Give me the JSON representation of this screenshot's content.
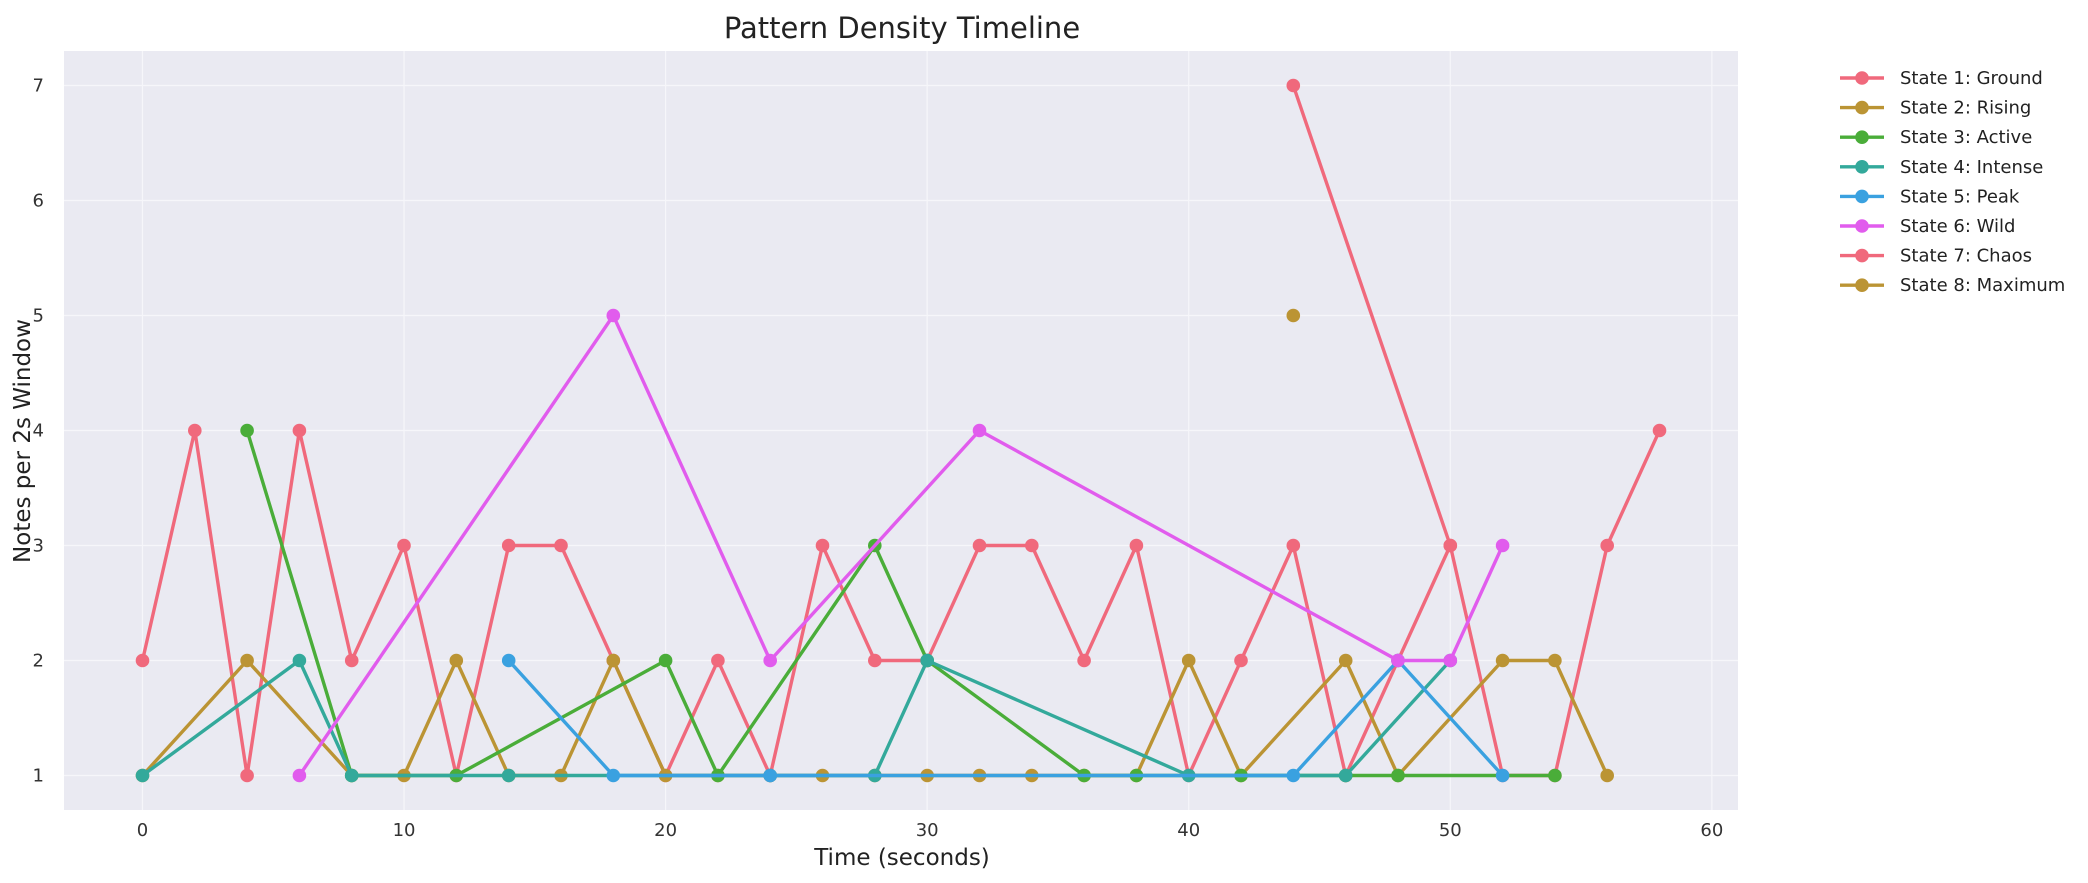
{
  "chart_data": {
    "type": "line",
    "title": "Pattern Density Timeline",
    "xlabel": "Time (seconds)",
    "ylabel": "Notes per 2s Window",
    "xlim": [
      -3,
      61
    ],
    "ylim": [
      0.7,
      7.3
    ],
    "xticks": [
      0,
      10,
      20,
      30,
      40,
      50,
      60
    ],
    "yticks": [
      1,
      2,
      3,
      4,
      5,
      6,
      7
    ],
    "grid": true,
    "legend_position": "outside-right",
    "series": [
      {
        "name": "State 1: Ground",
        "color": "#f0697c",
        "points": [
          [
            0,
            2
          ],
          [
            2,
            4
          ],
          [
            4,
            1
          ],
          [
            6,
            4
          ],
          [
            8,
            2
          ],
          [
            10,
            3
          ],
          [
            12,
            1
          ],
          [
            14,
            3
          ],
          [
            16,
            3
          ],
          [
            18,
            2
          ],
          [
            20,
            1
          ],
          [
            22,
            2
          ],
          [
            24,
            1
          ],
          [
            26,
            3
          ],
          [
            28,
            2
          ],
          [
            30,
            2
          ],
          [
            32,
            3
          ],
          [
            34,
            3
          ],
          [
            36,
            2
          ],
          [
            38,
            3
          ],
          [
            40,
            1
          ],
          [
            42,
            2
          ],
          [
            44,
            3
          ],
          [
            46,
            1
          ],
          [
            48,
            2
          ],
          [
            50,
            3
          ],
          [
            52,
            1
          ],
          [
            54,
            1
          ],
          [
            56,
            3
          ],
          [
            58,
            4
          ]
        ]
      },
      {
        "name": "State 2: Rising",
        "color": "#bb9434",
        "points": [
          [
            0,
            1
          ],
          [
            4,
            2
          ],
          [
            8,
            1
          ],
          [
            10,
            1
          ],
          [
            12,
            2
          ],
          [
            14,
            1
          ],
          [
            16,
            1
          ],
          [
            18,
            2
          ],
          [
            20,
            1
          ],
          [
            22,
            1
          ],
          [
            24,
            1
          ],
          [
            26,
            1
          ],
          [
            28,
            1
          ],
          [
            30,
            1
          ],
          [
            32,
            1
          ],
          [
            34,
            1
          ],
          [
            36,
            1
          ],
          [
            38,
            1
          ],
          [
            40,
            2
          ],
          [
            42,
            1
          ],
          [
            46,
            2
          ],
          [
            48,
            1
          ],
          [
            52,
            2
          ],
          [
            54,
            2
          ],
          [
            56,
            1
          ]
        ]
      },
      {
        "name": "State 3: Active",
        "color": "#4aad39",
        "points": [
          [
            4,
            4
          ],
          [
            8,
            1
          ],
          [
            12,
            1
          ],
          [
            20,
            2
          ],
          [
            22,
            1
          ],
          [
            28,
            3
          ],
          [
            30,
            2
          ],
          [
            36,
            1
          ],
          [
            38,
            1
          ],
          [
            42,
            1
          ],
          [
            46,
            1
          ],
          [
            48,
            1
          ],
          [
            54,
            1
          ]
        ]
      },
      {
        "name": "State 4: Intense",
        "color": "#33a99b",
        "points": [
          [
            0,
            1
          ],
          [
            6,
            2
          ],
          [
            8,
            1
          ],
          [
            14,
            1
          ],
          [
            24,
            1
          ],
          [
            28,
            1
          ],
          [
            30,
            2
          ],
          [
            40,
            1
          ],
          [
            46,
            1
          ],
          [
            50,
            2
          ]
        ]
      },
      {
        "name": "State 5: Peak",
        "color": "#3aa1e0",
        "points": [
          [
            14,
            2
          ],
          [
            18,
            1
          ],
          [
            24,
            1
          ],
          [
            44,
            1
          ],
          [
            48,
            2
          ],
          [
            52,
            1
          ]
        ]
      },
      {
        "name": "State 6: Wild",
        "color": "#e15ced",
        "points": [
          [
            6,
            1
          ],
          [
            18,
            5
          ],
          [
            24,
            2
          ],
          [
            32,
            4
          ],
          [
            48,
            2
          ],
          [
            50,
            2
          ],
          [
            52,
            3
          ]
        ]
      },
      {
        "name": "State 7: Chaos",
        "color": "#f0697c",
        "points": [
          [
            44,
            7
          ],
          [
            50,
            3
          ]
        ]
      },
      {
        "name": "State 8: Maximum",
        "color": "#bb9434",
        "points": [
          [
            44,
            5
          ]
        ]
      }
    ]
  }
}
